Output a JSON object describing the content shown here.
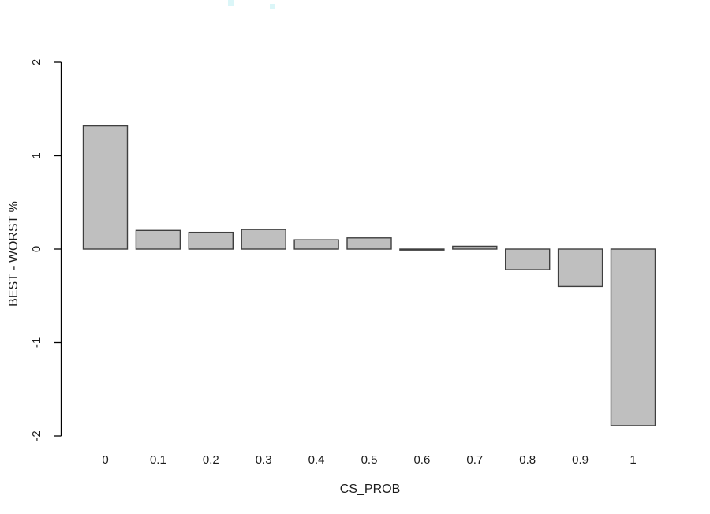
{
  "chart_data": {
    "type": "bar",
    "title": "",
    "xlabel": "CS_PROB",
    "ylabel": "BEST - WORST %",
    "categories": [
      "0",
      "0.1",
      "0.2",
      "0.3",
      "0.4",
      "0.5",
      "0.6",
      "0.7",
      "0.8",
      "0.9",
      "1"
    ],
    "values": [
      1.32,
      0.2,
      0.18,
      0.21,
      0.1,
      0.12,
      -0.01,
      0.03,
      -0.22,
      -0.4,
      -1.89
    ],
    "ylim": [
      -2,
      2
    ],
    "yticks": [
      -2,
      -1,
      0,
      1,
      2
    ],
    "ytick_labels": [
      "-2",
      "-1",
      "0",
      "1",
      "2"
    ],
    "ytick_labels_rotated": true,
    "grid": false,
    "legend": null,
    "colors": {
      "bar_fill": "#bfbfbf",
      "bar_border": "#3f3f3f",
      "axis": "#000000",
      "text": "#1c1c1c",
      "background": "#ffffff",
      "artifact_speck": "#35cbd8"
    }
  }
}
